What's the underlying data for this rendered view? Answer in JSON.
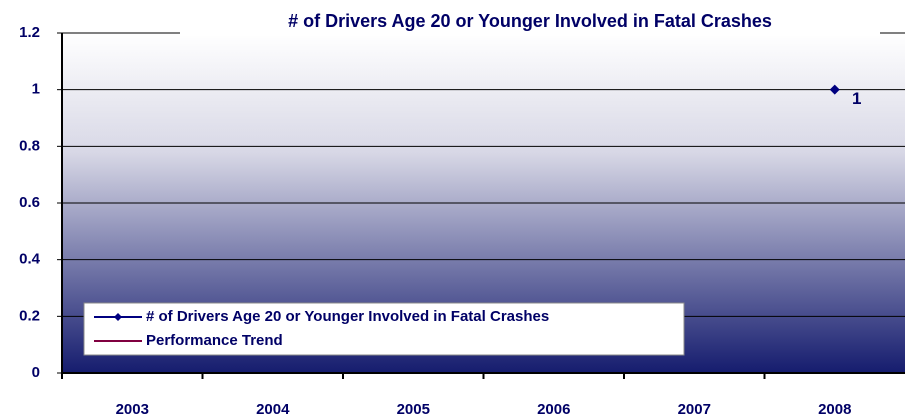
{
  "chart_data": {
    "type": "line",
    "title": "# of Drivers Age 20 or Younger Involved in Fatal Crashes",
    "categories": [
      "2003",
      "2004",
      "2005",
      "2006",
      "2007",
      "2008"
    ],
    "series": [
      {
        "name": "# of Drivers Age 20 or Younger Involved in Fatal Crashes",
        "color": "#000080",
        "values": [
          null,
          null,
          null,
          null,
          null,
          1
        ]
      },
      {
        "name": "Performance Trend",
        "color": "#800040",
        "values": [
          null,
          null,
          null,
          null,
          null,
          null
        ]
      }
    ],
    "ylim": [
      0,
      1.2
    ],
    "yticks": [
      0,
      0.2,
      0.4,
      0.6,
      0.8,
      1,
      1.2
    ],
    "grid": true,
    "legend": "bottom-left"
  }
}
